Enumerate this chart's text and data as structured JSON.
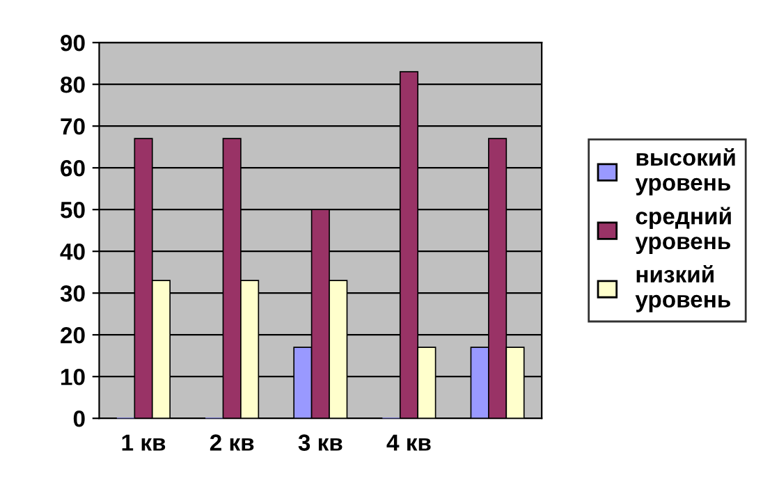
{
  "chart_data": {
    "type": "bar",
    "categories": [
      "1 кв",
      "2 кв",
      "3 кв",
      "4 кв",
      null
    ],
    "series": [
      {
        "name": "высокий уровень",
        "color": "#9999ff",
        "values": [
          0,
          0,
          17,
          0,
          17
        ]
      },
      {
        "name": "средний уровень",
        "color": "#993366",
        "values": [
          67,
          67,
          50,
          83,
          67
        ]
      },
      {
        "name": "низкий уровень",
        "color": "#ffffcc",
        "values": [
          33,
          33,
          33,
          17,
          17
        ]
      }
    ],
    "ylim": [
      0,
      90
    ],
    "yticks": [
      0,
      10,
      20,
      30,
      40,
      50,
      60,
      70,
      80,
      90
    ],
    "grid": "y",
    "legend": "right"
  }
}
